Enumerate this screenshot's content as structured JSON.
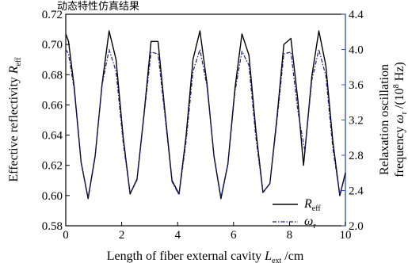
{
  "header_fragment": "动态特性仿真结果",
  "chart_data": {
    "type": "line",
    "xlabel": "Length of fiber external cavity L_ext /cm",
    "xlabel_parts": {
      "main": "Length of fiber external cavity ",
      "sym": "L",
      "sub": "ext",
      "unit": " /cm"
    },
    "ylabel_left_parts": {
      "main": "Effective reflectivity ",
      "sym": "R",
      "sub": "eff"
    },
    "ylabel_right_line1": "Relaxation oscillation",
    "ylabel_right_parts": {
      "main": "frequency ",
      "sym": "ω",
      "sub": "r",
      "mid": " /(10",
      "sup": "8",
      "end": " Hz)"
    },
    "xlim": [
      0,
      10
    ],
    "ylim_left": [
      0.58,
      0.72
    ],
    "ylim_right": [
      2.0,
      4.4
    ],
    "xticks": [
      "0",
      "2",
      "4",
      "6",
      "8",
      "10"
    ],
    "yticks_left": [
      "0.58",
      "0.60",
      "0.62",
      "0.64",
      "0.66",
      "0.68",
      "0.70",
      "0.72"
    ],
    "yticks_right": [
      "2.0",
      "2.4",
      "2.8",
      "3.2",
      "3.6",
      "4.0",
      "4.4"
    ],
    "legend": [
      {
        "sym": "R",
        "sub": "eff",
        "style": "solid"
      },
      {
        "sym": "ω",
        "sub": "r",
        "style": "dashdot"
      }
    ],
    "legend_position": "lower-right",
    "series": [
      {
        "axis": "left",
        "style": "solid",
        "color": "#000000",
        "x": [
          0,
          0.1,
          0.3,
          0.55,
          0.8,
          1.05,
          1.3,
          1.55,
          1.8,
          2.05,
          2.3,
          2.55,
          2.8,
          3.05,
          3.3,
          3.55,
          3.8,
          4.05,
          4.3,
          4.55,
          4.8,
          5.05,
          5.3,
          5.55,
          5.8,
          6.05,
          6.3,
          6.55,
          6.8,
          7.05,
          7.3,
          7.55,
          7.8,
          8.05,
          8.3,
          8.5,
          8.55,
          8.8,
          9.05,
          9.3,
          9.55,
          9.8,
          10.0
        ],
        "y": [
          0.707,
          0.702,
          0.672,
          0.622,
          0.598,
          0.626,
          0.674,
          0.709,
          0.69,
          0.639,
          0.601,
          0.611,
          0.654,
          0.702,
          0.702,
          0.655,
          0.61,
          0.601,
          0.639,
          0.69,
          0.709,
          0.674,
          0.626,
          0.598,
          0.621,
          0.671,
          0.707,
          0.693,
          0.643,
          0.602,
          0.608,
          0.651,
          0.7,
          0.704,
          0.663,
          0.62,
          0.629,
          0.679,
          0.709,
          0.686,
          0.636,
          0.6,
          0.615
        ]
      },
      {
        "axis": "right",
        "style": "dashdot",
        "color": "#1a1a8c",
        "x": [
          0,
          0.1,
          0.3,
          0.55,
          0.8,
          1.05,
          1.3,
          1.55,
          1.8,
          2.05,
          2.3,
          2.55,
          2.8,
          3.05,
          3.3,
          3.55,
          3.8,
          4.05,
          4.3,
          4.55,
          4.8,
          5.05,
          5.3,
          5.55,
          5.8,
          6.05,
          6.3,
          6.55,
          6.8,
          7.05,
          7.3,
          7.55,
          7.8,
          8.05,
          8.3,
          8.55,
          8.8,
          9.05,
          9.3,
          9.55,
          9.8,
          10.0
        ],
        "y": [
          4.0,
          3.95,
          3.55,
          2.72,
          2.32,
          2.8,
          3.6,
          4.0,
          3.75,
          2.95,
          2.37,
          2.52,
          3.25,
          3.97,
          3.95,
          3.24,
          2.5,
          2.35,
          2.95,
          3.75,
          4.0,
          3.58,
          2.8,
          2.32,
          2.7,
          3.52,
          3.98,
          3.82,
          3.0,
          2.38,
          2.48,
          3.18,
          3.95,
          3.97,
          3.3,
          2.85,
          3.65,
          4.0,
          3.7,
          2.88,
          2.35,
          2.58
        ]
      }
    ]
  }
}
